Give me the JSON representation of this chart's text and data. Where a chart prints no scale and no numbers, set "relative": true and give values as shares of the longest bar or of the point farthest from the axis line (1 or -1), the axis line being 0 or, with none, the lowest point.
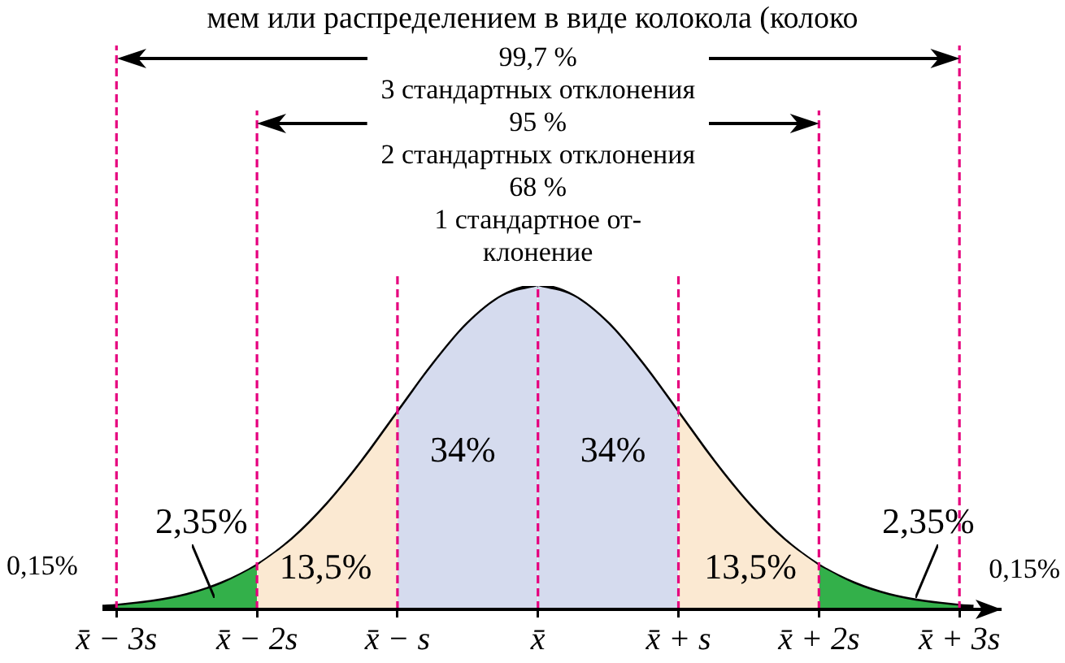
{
  "chart_data": {
    "type": "area",
    "title": "мем или распределением в виде колокола (колоко",
    "relative": true,
    "xlim": [
      -3.1,
      3.3
    ],
    "xticks": [
      {
        "value": -3,
        "label": "x̄ − 3s"
      },
      {
        "value": -2,
        "label": "x̄ − 2s"
      },
      {
        "value": -1,
        "label": "x̄ − s"
      },
      {
        "value": 0,
        "label": "x̄"
      },
      {
        "value": 1,
        "label": "x̄ + s"
      },
      {
        "value": 2,
        "label": "x̄ + 2s"
      },
      {
        "value": 3,
        "label": "x̄ + 3s"
      }
    ],
    "series": [
      {
        "color": "#33b04a",
        "x": [
          -3,
          -2.75,
          -2.5,
          -2.25,
          -2
        ],
        "values": [
          0.011,
          0.023,
          0.044,
          0.08,
          0.135
        ]
      },
      {
        "color": "#fbe9d2",
        "x": [
          -2,
          -1.75,
          -1.5,
          -1.25,
          -1
        ],
        "values": [
          0.135,
          0.216,
          0.325,
          0.458,
          0.607
        ]
      },
      {
        "color": "#d5dbee",
        "x": [
          -1,
          -0.75,
          -0.5,
          -0.25,
          0
        ],
        "values": [
          0.607,
          0.755,
          0.883,
          0.969,
          1
        ]
      },
      {
        "color": "#d5dbee",
        "x": [
          0,
          0.25,
          0.5,
          0.75,
          1
        ],
        "values": [
          1,
          0.969,
          0.883,
          0.755,
          0.607
        ]
      },
      {
        "color": "#fbe9d2",
        "x": [
          1,
          1.25,
          1.5,
          1.75,
          2
        ],
        "values": [
          0.607,
          0.458,
          0.325,
          0.216,
          0.135
        ]
      },
      {
        "color": "#33b04a",
        "x": [
          2,
          2.25,
          2.5,
          2.75,
          3
        ],
        "values": [
          0.135,
          0.08,
          0.044,
          0.023,
          0.011
        ]
      },
      {
        "type": "line",
        "color": "#000000",
        "x": [
          -3.1,
          -3,
          -2.75,
          -2.5,
          -2.25,
          -2,
          -1.75,
          -1.5,
          -1.25,
          -1,
          -0.75,
          -0.5,
          -0.25,
          0,
          0.25,
          0.5,
          0.75,
          1,
          1.25,
          1.5,
          1.75,
          2,
          2.25,
          2.5,
          2.75,
          3,
          3.1
        ],
        "values": [
          0.008,
          0.011,
          0.023,
          0.044,
          0.08,
          0.135,
          0.216,
          0.325,
          0.458,
          0.607,
          0.755,
          0.883,
          0.969,
          1,
          0.969,
          0.883,
          0.755,
          0.607,
          0.458,
          0.325,
          0.216,
          0.135,
          0.08,
          0.044,
          0.023,
          0.011,
          0.008
        ]
      }
    ],
    "ref_lines": [
      {
        "axis": "x",
        "value": -3,
        "color": "#e6007e",
        "line_style": "dashed"
      },
      {
        "axis": "x",
        "value": -2,
        "color": "#e6007e",
        "line_style": "dashed"
      },
      {
        "axis": "x",
        "value": -1,
        "color": "#e6007e",
        "line_style": "dashed"
      },
      {
        "axis": "x",
        "value": 0,
        "color": "#e6007e",
        "line_style": "dashed"
      },
      {
        "axis": "x",
        "value": 1,
        "color": "#e6007e",
        "line_style": "dashed"
      },
      {
        "axis": "x",
        "value": 2,
        "color": "#e6007e",
        "line_style": "dashed"
      },
      {
        "axis": "x",
        "value": 3,
        "color": "#e6007e",
        "line_style": "dashed"
      }
    ],
    "annotations": [
      "99,7 %",
      "3 стандартных отклонения",
      "95 %",
      "2 стандартных отклонения",
      "68 %",
      "1 стандартное от-\nклонение",
      "0,15%",
      "0,15%",
      "2,35%",
      "13,5%",
      "34%",
      "34%",
      "13,5%",
      "2,35%"
    ]
  }
}
